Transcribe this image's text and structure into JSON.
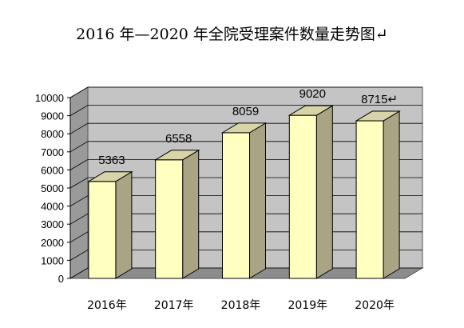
{
  "title": "2016 年—2020 年全院受理案件数量走势图↵",
  "chart_data": {
    "type": "bar",
    "title": "2016 年—2020 年全院受理案件数量走势图↵",
    "categories": [
      "2016年",
      "2017年",
      "2018年",
      "2019年",
      "2020年"
    ],
    "values": [
      5363,
      6558,
      8059,
      9020,
      8715
    ],
    "data_labels": [
      "5363",
      "6558",
      "8059",
      "9020",
      "8715↵"
    ],
    "xlabel": "",
    "ylabel": "",
    "ylim": [
      0,
      10000
    ],
    "yticks": [
      "0",
      "1000",
      "2000",
      "3000",
      "4000",
      "5000",
      "6000",
      "7000",
      "8000",
      "9000",
      "10000"
    ],
    "grid": true,
    "legend": "none",
    "style": "3d",
    "colors": {
      "bar_front": "#ffffc0",
      "bar_side": "#a8a484",
      "bar_top": "#d8d4a8",
      "back_wall": "#c4c4c4",
      "side_wall": "#9a9a9a",
      "floor": "#8c8c8c"
    }
  }
}
